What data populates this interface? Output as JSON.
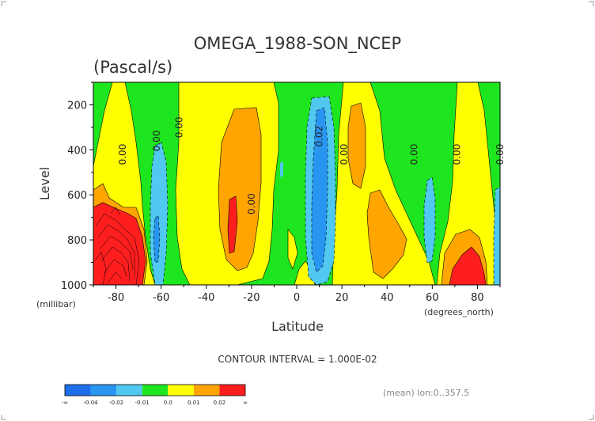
{
  "chart_data": {
    "type": "heatmap",
    "title": "OMEGA_1988-SON_NCEP",
    "units": "(Pascal/s)",
    "xlabel": "Latitude",
    "ylabel": "Level",
    "x_unit_label": "(degrees_north)",
    "y_unit_label": "(millibar)",
    "xlim": [
      -90,
      90
    ],
    "ylim": [
      1000,
      100
    ],
    "x_ticks": [
      "-80",
      "-60",
      "-40",
      "-20",
      "0",
      "20",
      "40",
      "60",
      "80"
    ],
    "y_ticks": [
      "200",
      "400",
      "600",
      "800",
      "1000"
    ],
    "contour_labels": [
      "0.00",
      "0.00",
      "0.00",
      "0.02",
      "0.00",
      "0.00",
      "0.00",
      "0.00",
      "0.00"
    ],
    "contour_interval": "CONTOUR INTERVAL = 1.000E-02",
    "subtitle_right": "(mean) lon:0..357.5",
    "colorbar": {
      "colors": [
        "#1e6eeb",
        "#2896f0",
        "#50c8f0",
        "#1ee61e",
        "#ffff00",
        "#ffa500",
        "#ff1e1e"
      ],
      "labels": [
        "-∞",
        "-0.04",
        "-0.02",
        "-0.01",
        "0.0",
        "0.01",
        "0.02",
        "∞"
      ]
    },
    "background_value_color": "#1ee61e"
  }
}
